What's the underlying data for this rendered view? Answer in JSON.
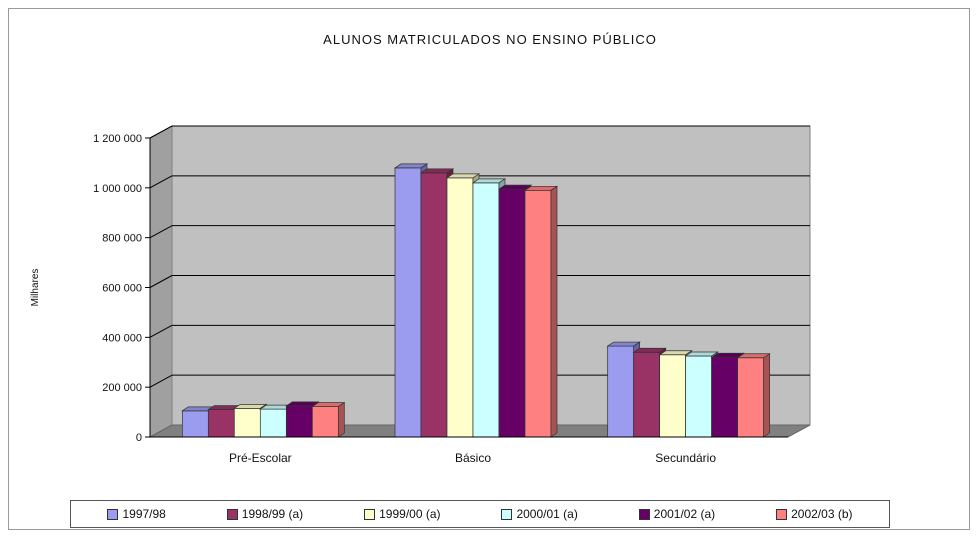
{
  "chart_data": {
    "type": "bar",
    "title": "ALUNOS MATRICULADOS NO ENSINO PÚBLICO",
    "ylabel": "Milhares",
    "xlabel": "",
    "categories": [
      "Pré-Escolar",
      "Básico",
      "Secundário"
    ],
    "ylim": [
      0,
      1200000
    ],
    "yticks": [
      0,
      200000,
      400000,
      600000,
      800000,
      1000000,
      1200000
    ],
    "ytick_labels": [
      "0",
      "200 000",
      "400 000",
      "600 000",
      "800 000",
      "1 000 000",
      "1 200 000"
    ],
    "grid": true,
    "legend_position": "bottom",
    "series": [
      {
        "name": "1997/98",
        "color": "#9b9bf0",
        "values": [
          105000,
          1080000,
          365000
        ]
      },
      {
        "name": "1998/99 (a)",
        "color": "#993366",
        "values": [
          110000,
          1060000,
          340000
        ]
      },
      {
        "name": "1999/00 (a)",
        "color": "#ffffcc",
        "values": [
          115000,
          1040000,
          330000
        ]
      },
      {
        "name": "2000/01 (a)",
        "color": "#ccffff",
        "values": [
          112000,
          1020000,
          325000
        ]
      },
      {
        "name": "2001/02 (a)",
        "color": "#660066",
        "values": [
          125000,
          995000,
          320000
        ]
      },
      {
        "name": "2002/03 (b)",
        "color": "#ff8080",
        "values": [
          122000,
          990000,
          318000
        ]
      }
    ]
  }
}
